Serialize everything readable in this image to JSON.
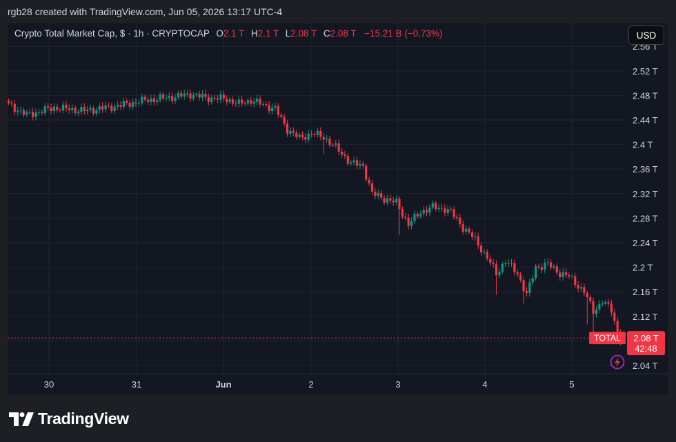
{
  "attribution": "rgb28 created with TradingView.com, Jun 05, 2026 13:17 UTC-4",
  "legend": {
    "symbol": "Crypto Total Market Cap, $ · 1h · CRYPTOCAP",
    "o_label": "O",
    "o_value": "2.1 T",
    "h_label": "H",
    "h_value": "2.1 T",
    "l_label": "L",
    "l_value": "2.08 T",
    "c_label": "C",
    "c_value": "2.08 T",
    "change": "−15.21 B (−0.73%)"
  },
  "currency_button": "USD",
  "price_tag": {
    "symbol": "TOTAL",
    "price": "2.08 T",
    "countdown": "42:48"
  },
  "logo_text": "TradingView",
  "colors": {
    "up": "#089981",
    "down": "#f23645",
    "grid": "#1f2533",
    "axis_text": "#d1d4dc",
    "background": "#131722",
    "page": "#1e1f24",
    "alert": "#9c27b0"
  },
  "chart_data": {
    "type": "candlestick",
    "interval": "1h",
    "unit": "T",
    "y_ticks": [
      "2.04 T",
      "2.08 T",
      "2.12 T",
      "2.16 T",
      "2.2 T",
      "2.24 T",
      "2.28 T",
      "2.32 T",
      "2.36 T",
      "2.4 T",
      "2.44 T",
      "2.48 T",
      "2.52 T",
      "2.56 T"
    ],
    "x_ticks": [
      "30",
      "31",
      "Jun",
      "2",
      "3",
      "4",
      "5"
    ],
    "ylim": [
      2.02,
      2.57
    ],
    "last_price": 2.0848,
    "grid": true,
    "close_path": [
      [
        0,
        2.465
      ],
      [
        6,
        2.448
      ],
      [
        15,
        2.46
      ],
      [
        25,
        2.455
      ],
      [
        35,
        2.462
      ],
      [
        45,
        2.472
      ],
      [
        55,
        2.478
      ],
      [
        60,
        2.482
      ],
      [
        65,
        2.476
      ],
      [
        72,
        2.474
      ],
      [
        76,
        2.466
      ],
      [
        80,
        2.472
      ],
      [
        88,
        2.458
      ],
      [
        92,
        2.425
      ],
      [
        96,
        2.41
      ],
      [
        100,
        2.418
      ],
      [
        104,
        2.412
      ],
      [
        108,
        2.395
      ],
      [
        113,
        2.37
      ],
      [
        117,
        2.365
      ],
      [
        120,
        2.32
      ],
      [
        124,
        2.312
      ],
      [
        128,
        2.305
      ],
      [
        132,
        2.27
      ],
      [
        136,
        2.29
      ],
      [
        140,
        2.298
      ],
      [
        144,
        2.295
      ],
      [
        146,
        2.29
      ],
      [
        150,
        2.265
      ],
      [
        154,
        2.245
      ],
      [
        158,
        2.215
      ],
      [
        161,
        2.19
      ],
      [
        164,
        2.21
      ],
      [
        168,
        2.19
      ],
      [
        171,
        2.155
      ],
      [
        174,
        2.2
      ],
      [
        178,
        2.205
      ],
      [
        182,
        2.19
      ],
      [
        185,
        2.185
      ],
      [
        188,
        2.17
      ],
      [
        190,
        2.16
      ],
      [
        193,
        2.128
      ],
      [
        196,
        2.145
      ],
      [
        199,
        2.13
      ],
      [
        201,
        2.095
      ],
      [
        203,
        2.085
      ]
    ],
    "anomalies": [
      [
        104,
        2.385
      ],
      [
        129,
        2.253
      ],
      [
        161,
        2.155
      ],
      [
        170,
        2.14
      ],
      [
        191,
        2.107
      ],
      [
        193,
        2.094
      ],
      [
        202,
        2.072
      ]
    ]
  }
}
